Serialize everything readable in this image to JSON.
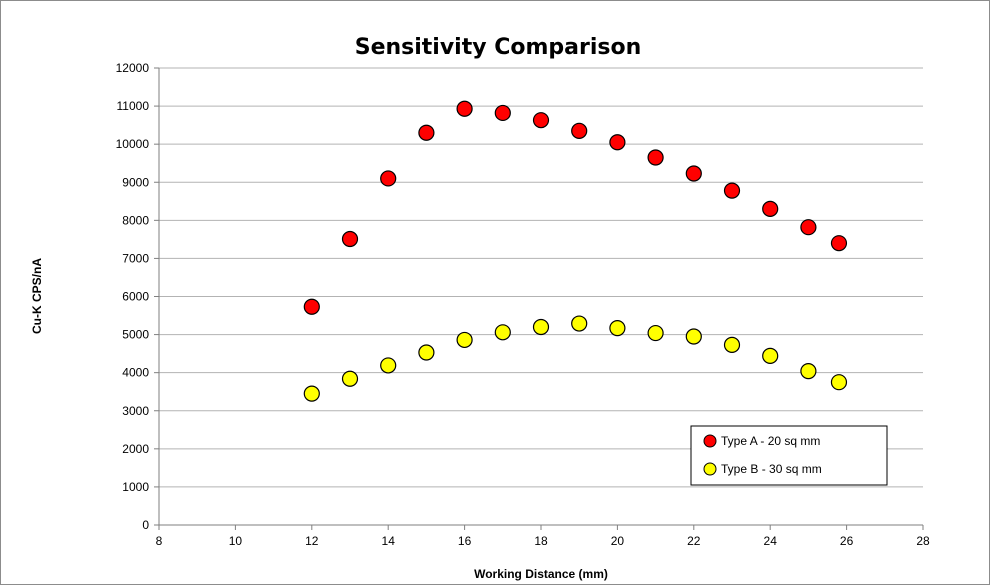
{
  "chart_data": {
    "type": "scatter",
    "title": "Sensitivity Comparison",
    "xlabel": "Working Distance (mm)",
    "ylabel": "Cu-K CPS/nA",
    "xlim": [
      8,
      28
    ],
    "ylim": [
      0,
      12000
    ],
    "x_ticks": [
      8,
      10,
      12,
      14,
      16,
      18,
      20,
      22,
      24,
      26,
      28
    ],
    "y_ticks": [
      0,
      1000,
      2000,
      3000,
      4000,
      5000,
      6000,
      7000,
      8000,
      9000,
      10000,
      11000,
      12000
    ],
    "grid": "horizontal",
    "legend_position": "bottom-right",
    "series": [
      {
        "name": "Type A - 20 sq mm",
        "color": "#ff0000",
        "x": [
          12,
          13,
          14,
          15,
          16,
          17,
          18,
          19,
          20,
          21,
          22,
          23,
          24,
          25,
          25.8
        ],
        "y": [
          5730,
          7510,
          9100,
          10300,
          10930,
          10820,
          10630,
          10350,
          10050,
          9650,
          9230,
          8780,
          8300,
          7820,
          7400
        ]
      },
      {
        "name": "Type B - 30 sq mm",
        "color": "#ffff00",
        "x": [
          12,
          13,
          14,
          15,
          16,
          17,
          18,
          19,
          20,
          21,
          22,
          23,
          24,
          25,
          25.8
        ],
        "y": [
          3450,
          3840,
          4190,
          4530,
          4860,
          5060,
          5200,
          5290,
          5170,
          5040,
          4950,
          4730,
          4440,
          4040,
          3750
        ]
      }
    ]
  }
}
